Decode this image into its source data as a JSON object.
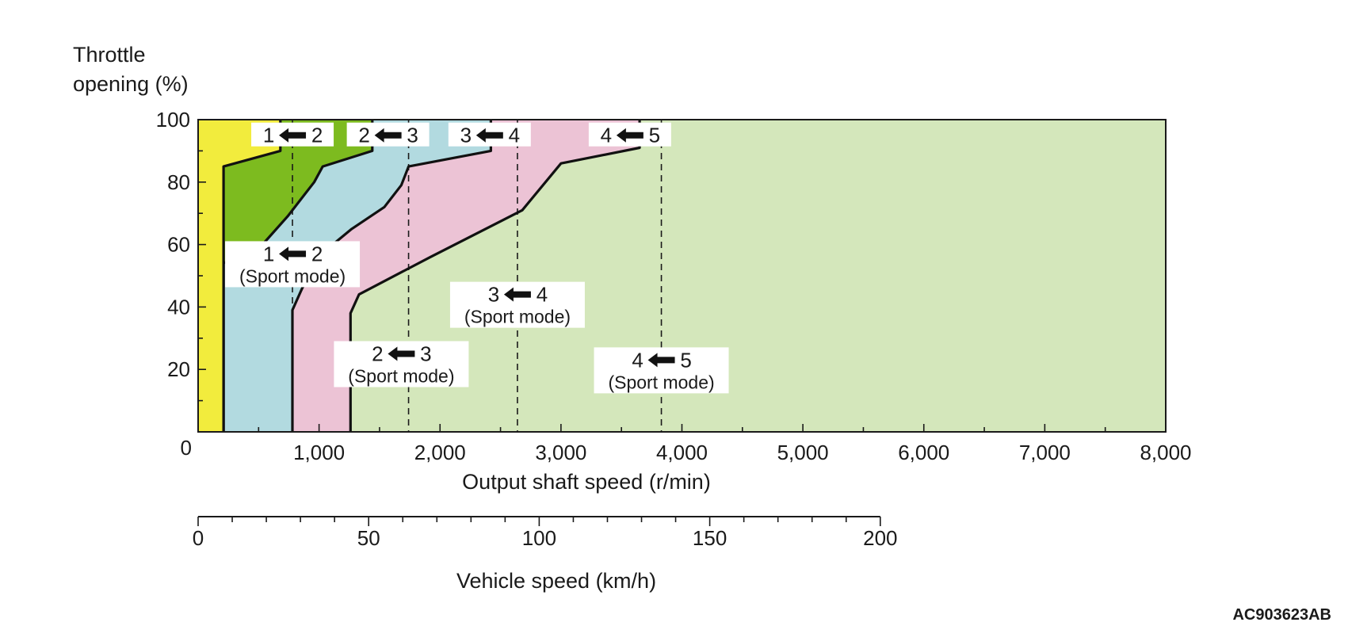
{
  "chart_data": {
    "type": "area",
    "title": "",
    "ylabel_line1": "Throttle",
    "ylabel_line2": "opening (%)",
    "xlabel": "Output shaft speed (r/min)",
    "xlabel2": "Vehicle speed (km/h)",
    "xlim": [
      0,
      8000
    ],
    "ylim": [
      0,
      100
    ],
    "x2lim": [
      0,
      200
    ],
    "x2_equivalent_rpm_at_200": 5640,
    "yticks": [
      {
        "value": 0,
        "label": "0"
      },
      {
        "value": 20,
        "label": "20"
      },
      {
        "value": 40,
        "label": "40"
      },
      {
        "value": 60,
        "label": "60"
      },
      {
        "value": 80,
        "label": "80"
      },
      {
        "value": 100,
        "label": "100"
      }
    ],
    "xticks": [
      {
        "value": 1000,
        "label": "1,000"
      },
      {
        "value": 2000,
        "label": "2,000"
      },
      {
        "value": 3000,
        "label": "3,000"
      },
      {
        "value": 4000,
        "label": "4,000"
      },
      {
        "value": 5000,
        "label": "5,000"
      },
      {
        "value": 6000,
        "label": "6,000"
      },
      {
        "value": 7000,
        "label": "7,000"
      },
      {
        "value": 8000,
        "label": "8,000"
      }
    ],
    "x2ticks": [
      {
        "value": 0,
        "label": "0"
      },
      {
        "value": 50,
        "label": "50"
      },
      {
        "value": 100,
        "label": "100"
      },
      {
        "value": 150,
        "label": "150"
      },
      {
        "value": 200,
        "label": "200"
      }
    ],
    "zones": [
      {
        "name": "gear-1",
        "color": "#f2ec3d"
      },
      {
        "name": "gear-2",
        "color": "#7dbb1f"
      },
      {
        "name": "gear-3",
        "color": "#b2dae0"
      },
      {
        "name": "gear-4",
        "color": "#ecc3d5"
      },
      {
        "name": "gear-5",
        "color": "#d4e7bb"
      }
    ],
    "shift_lines": [
      {
        "name": "1-2",
        "points": [
          [
            210,
            0
          ],
          [
            210,
            85
          ],
          [
            680,
            90
          ],
          [
            680,
            100
          ]
        ]
      },
      {
        "name": "2-3",
        "points": [
          [
            210,
            0
          ],
          [
            210,
            54
          ],
          [
            510,
            59
          ],
          [
            740,
            69
          ],
          [
            960,
            80
          ],
          [
            1030,
            85
          ],
          [
            1440,
            90
          ],
          [
            1440,
            100
          ]
        ]
      },
      {
        "name": "3-4",
        "points": [
          [
            780,
            0
          ],
          [
            780,
            39
          ],
          [
            860,
            46
          ],
          [
            1020,
            57
          ],
          [
            1270,
            65
          ],
          [
            1540,
            72
          ],
          [
            1680,
            79
          ],
          [
            1740,
            85
          ],
          [
            2420,
            90
          ],
          [
            2420,
            100
          ]
        ]
      },
      {
        "name": "4-5",
        "points": [
          [
            1260,
            0
          ],
          [
            1260,
            38
          ],
          [
            1330,
            44
          ],
          [
            1920,
            56
          ],
          [
            2680,
            71
          ],
          [
            3000,
            86
          ],
          [
            3650,
            91
          ],
          [
            3650,
            100
          ]
        ]
      }
    ],
    "sport_lines": [
      {
        "name": "1-2 sport",
        "x": 780
      },
      {
        "name": "2-3 sport",
        "x": 1740
      },
      {
        "name": "3-4 sport",
        "x": 2640
      },
      {
        "name": "4-5 sport",
        "x": 3830
      }
    ],
    "annotations": [
      {
        "from": "1",
        "to": "2",
        "x": 780,
        "y": 95,
        "sport": ""
      },
      {
        "from": "2",
        "to": "3",
        "x": 1570,
        "y": 95,
        "sport": ""
      },
      {
        "from": "3",
        "to": "4",
        "x": 2410,
        "y": 95,
        "sport": ""
      },
      {
        "from": "4",
        "to": "5",
        "x": 3570,
        "y": 95,
        "sport": ""
      },
      {
        "from": "1",
        "to": "2",
        "x": 780,
        "y": 57,
        "sport": "(Sport mode)"
      },
      {
        "from": "3",
        "to": "4",
        "x": 2640,
        "y": 44,
        "sport": "(Sport mode)"
      },
      {
        "from": "2",
        "to": "3",
        "x": 1680,
        "y": 25,
        "sport": "(Sport mode)"
      },
      {
        "from": "4",
        "to": "5",
        "x": 3830,
        "y": 23,
        "sport": "(Sport mode)"
      }
    ],
    "figure_code": "AC903623AB"
  }
}
